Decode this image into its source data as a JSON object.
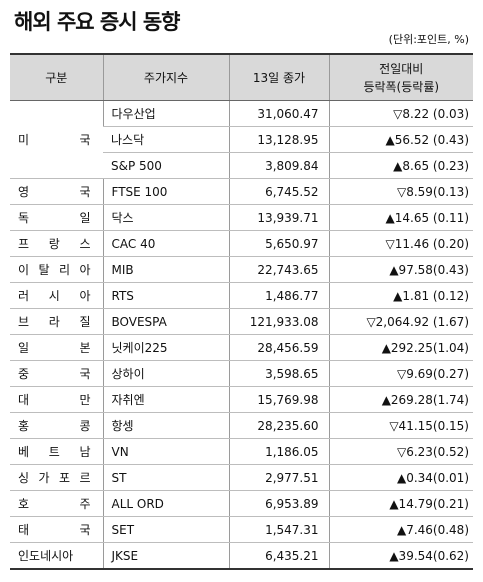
{
  "title": "해외 주요 증시 동향",
  "unit": "(단위:포인트, %)",
  "headers": {
    "category": "구분",
    "index": "주가지수",
    "close": "13일 종가",
    "change_line1": "전일대비",
    "change_line2": "등락폭(등락률)"
  },
  "rows": [
    {
      "country": "미 국",
      "index": "다우산업",
      "close": "31,060.47",
      "change": "▽8.22 (0.03)"
    },
    {
      "country": "",
      "index": "나스닥",
      "close": "13,128.95",
      "change": "▲56.52 (0.43)"
    },
    {
      "country": "",
      "index": "S&P 500",
      "close": "3,809.84",
      "change": "▲8.65 (0.23)"
    },
    {
      "country": "영 국",
      "index": "FTSE 100",
      "close": "6,745.52",
      "change": "▽8.59(0.13)"
    },
    {
      "country": "독 일",
      "index": "닥스",
      "close": "13,939.71",
      "change": "▲14.65 (0.11)"
    },
    {
      "country": "프 랑 스",
      "index": "CAC 40",
      "close": "5,650.97",
      "change": "▽11.46 (0.20)"
    },
    {
      "country": "이 탈 리 아",
      "index": "MIB",
      "close": "22,743.65",
      "change": "▲97.58(0.43)"
    },
    {
      "country": "러 시 아",
      "index": "RTS",
      "close": "1,486.77",
      "change": "▲1.81 (0.12)"
    },
    {
      "country": "브 라 질",
      "index": "BOVESPA",
      "close": "121,933.08",
      "change": "▽2,064.92 (1.67)"
    },
    {
      "country": "일 본",
      "index": "닛케이225",
      "close": "28,456.59",
      "change": "▲292.25(1.04)"
    },
    {
      "country": "중 국",
      "index": "상하이",
      "close": "3,598.65",
      "change": "▽9.69(0.27)"
    },
    {
      "country": "대 만",
      "index": "자취엔",
      "close": "15,769.98",
      "change": "▲269.28(1.74)"
    },
    {
      "country": "홍 콩",
      "index": "항셍",
      "close": "28,235.60",
      "change": "▽41.15(0.15)"
    },
    {
      "country": "베 트 남",
      "index": "VN",
      "close": "1,186.05",
      "change": "▽6.23(0.52)"
    },
    {
      "country": "싱 가 포 르",
      "index": "ST",
      "close": "2,977.51",
      "change": "▲0.34(0.01)"
    },
    {
      "country": "호 주",
      "index": "ALL ORD",
      "close": "6,953.89",
      "change": "▲14.79(0.21)"
    },
    {
      "country": "태 국",
      "index": "SET",
      "close": "1,547.31",
      "change": "▲7.46(0.48)"
    },
    {
      "country": "인도네시아",
      "index": "JKSE",
      "close": "6,435.21",
      "change": "▲39.54(0.62)"
    }
  ]
}
